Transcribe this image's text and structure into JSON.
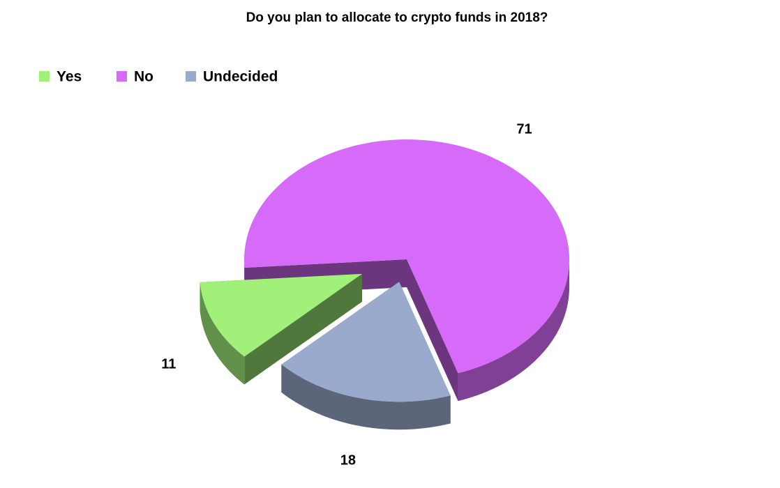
{
  "chart_data": {
    "type": "pie",
    "title": "Do you plan to allocate to crypto funds in 2018?",
    "categories": [
      "Yes",
      "No",
      "Undecided"
    ],
    "values": [
      11,
      71,
      18
    ],
    "colors": [
      "#a0f07a",
      "#d66bfa",
      "#9aaacc"
    ],
    "legend": "top-left"
  }
}
